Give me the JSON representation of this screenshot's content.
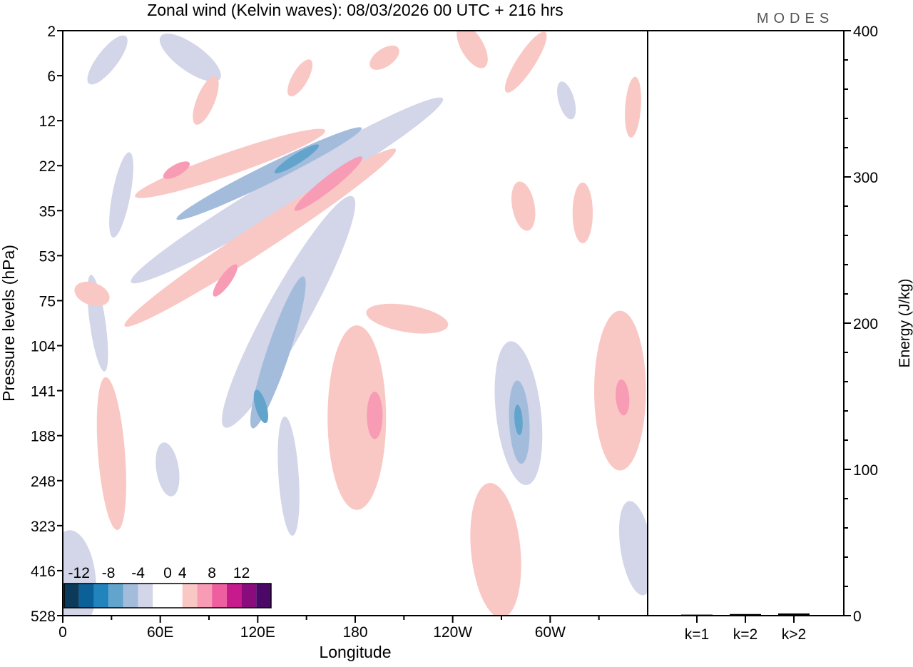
{
  "chart_data": {
    "type": "heatmap",
    "title": "Zonal wind (Kelvin waves):  08/03/2026  00 UTC  + 216 hrs",
    "logo": "MODES",
    "xlabel": "Longitude",
    "ylabel": "Pressure levels (hPa)",
    "x_ticks": [
      {
        "lon": 0,
        "label": "0"
      },
      {
        "lon": 60,
        "label": "60E"
      },
      {
        "lon": 120,
        "label": "120E"
      },
      {
        "lon": 180,
        "label": "180"
      },
      {
        "lon": 240,
        "label": "120W"
      },
      {
        "lon": 300,
        "label": "60W"
      }
    ],
    "xlim": [
      0,
      360
    ],
    "y_levels": [
      "2",
      "6",
      "12",
      "22",
      "35",
      "53",
      "75",
      "104",
      "141",
      "188",
      "248",
      "323",
      "416",
      "528"
    ],
    "colorbar": {
      "labels": [
        "-12",
        "-8",
        "-4",
        "0",
        "4",
        "8",
        "12"
      ],
      "label_values": [
        -12,
        -8,
        -4,
        0,
        4,
        8,
        12
      ],
      "bounds": [
        -14,
        -12,
        -10,
        -8,
        -6,
        -4,
        -2,
        2,
        4,
        6,
        8,
        10,
        12,
        14
      ],
      "colors": [
        "#0b3a5a",
        "#0b6097",
        "#2184bd",
        "#63a4cd",
        "#a4bcdc",
        "#d3d5e8",
        "#ffffff",
        "#f9c8c4",
        "#f89bb4",
        "#ef5e9e",
        "#c61a8d",
        "#8a0c7c",
        "#4b0868"
      ]
    },
    "features": [
      {
        "from": [
          5,
          11.6
        ],
        "to": [
          8,
          12.8
        ],
        "width": 1.0,
        "value": -3
      },
      {
        "from": [
          350,
          10.8
        ],
        "to": [
          356,
          12.2
        ],
        "width": 0.7,
        "value": -3
      },
      {
        "from": [
          51,
          5.4
        ],
        "to": [
          225,
          1.7
        ],
        "width": 0.75,
        "value": -3
      },
      {
        "from": [
          106,
          8.4
        ],
        "to": [
          172,
          4.1
        ],
        "width": 0.95,
        "value": -3
      },
      {
        "from": [
          137,
          8.8
        ],
        "to": [
          141,
          11.0
        ],
        "width": 0.45,
        "value": -3
      },
      {
        "from": [
          277,
          7.4
        ],
        "to": [
          284,
          9.6
        ],
        "width": 1.0,
        "value": -3
      },
      {
        "from": [
          67,
          0.3
        ],
        "to": [
          90,
          0.9
        ],
        "width": 0.6,
        "value": -3
      },
      {
        "from": [
          20,
          1.0
        ],
        "to": [
          35,
          0.3
        ],
        "width": 0.45,
        "value": -3
      },
      {
        "from": [
          308,
          1.3
        ],
        "to": [
          312,
          1.8
        ],
        "width": 0.35,
        "value": -3
      },
      {
        "from": [
          40,
          2.9
        ],
        "to": [
          32,
          4.4
        ],
        "width": 0.4,
        "value": -3
      },
      {
        "from": [
          63,
          9.4
        ],
        "to": [
          66,
          10.1
        ],
        "width": 0.5,
        "value": -3
      },
      {
        "from": [
          18,
          5.6
        ],
        "to": [
          25,
          7.4
        ],
        "width": 0.35,
        "value": -3
      },
      {
        "from": [
          75,
          4.1
        ],
        "to": [
          179,
          2.25
        ],
        "width": 0.4,
        "value": -5
      },
      {
        "from": [
          119,
          8.6
        ],
        "to": [
          146,
          5.7
        ],
        "width": 0.5,
        "value": -5
      },
      {
        "from": [
          280,
          8.0
        ],
        "to": [
          282,
          9.4
        ],
        "width": 0.45,
        "value": -5
      },
      {
        "from": [
          133,
          3.1
        ],
        "to": [
          155,
          2.6
        ],
        "width": 0.22,
        "value": -7
      },
      {
        "from": [
          120,
          8.1
        ],
        "to": [
          124,
          8.6
        ],
        "width": 0.25,
        "value": -7
      },
      {
        "from": [
          280,
          8.4
        ],
        "to": [
          281,
          8.9
        ],
        "width": 0.18,
        "value": -7
      },
      {
        "from": [
          51,
          3.6
        ],
        "to": [
          155,
          2.3
        ],
        "width": 0.5,
        "value": 3
      },
      {
        "from": [
          45,
          6.4
        ],
        "to": [
          198,
          2.8
        ],
        "width": 0.6,
        "value": 3
      },
      {
        "from": [
          181,
          7.2
        ],
        "to": [
          181,
          10.0
        ],
        "width": 1.3,
        "value": 3
      },
      {
        "from": [
          195,
          6.3
        ],
        "to": [
          229,
          6.5
        ],
        "width": 0.6,
        "value": 3
      },
      {
        "from": [
          343,
          6.8
        ],
        "to": [
          343,
          9.2
        ],
        "width": 1.15,
        "value": 3
      },
      {
        "from": [
          264,
          10.6
        ],
        "to": [
          269,
          12.5
        ],
        "width": 1.1,
        "value": 3
      },
      {
        "from": [
          14,
          5.8
        ],
        "to": [
          22,
          5.9
        ],
        "width": 0.5,
        "value": 3
      },
      {
        "from": [
          27,
          8.0
        ],
        "to": [
          33,
          10.8
        ],
        "width": 0.6,
        "value": 3
      },
      {
        "from": [
          294,
          0.2
        ],
        "to": [
          276,
          1.2
        ],
        "width": 0.4,
        "value": 3
      },
      {
        "from": [
          248,
          0.1
        ],
        "to": [
          256,
          0.6
        ],
        "width": 0.5,
        "value": 3
      },
      {
        "from": [
          84,
          1.9
        ],
        "to": [
          92,
          1.2
        ],
        "width": 0.4,
        "value": 3
      },
      {
        "from": [
          142,
          1.3
        ],
        "to": [
          150,
          0.8
        ],
        "width": 0.35,
        "value": 3
      },
      {
        "from": [
          194,
          0.7
        ],
        "to": [
          202,
          0.5
        ],
        "width": 0.4,
        "value": 3
      },
      {
        "from": [
          282,
          3.6
        ],
        "to": [
          285,
          4.2
        ],
        "width": 0.5,
        "value": 3
      },
      {
        "from": [
          320,
          3.6
        ],
        "to": [
          320,
          4.5
        ],
        "width": 0.45,
        "value": 3
      },
      {
        "from": [
          352,
          1.2
        ],
        "to": [
          350,
          2.2
        ],
        "width": 0.35,
        "value": 3
      },
      {
        "from": [
          146,
          3.9
        ],
        "to": [
          181,
          2.9
        ],
        "width": 0.3,
        "value": 5
      },
      {
        "from": [
          65,
          3.2
        ],
        "to": [
          75,
          3.0
        ],
        "width": 0.25,
        "value": 5
      },
      {
        "from": [
          95,
          5.8
        ],
        "to": [
          105,
          5.3
        ],
        "width": 0.25,
        "value": 5
      },
      {
        "from": [
          192,
          8.2
        ],
        "to": [
          192,
          8.9
        ],
        "width": 0.35,
        "value": 5
      },
      {
        "from": [
          344,
          7.9
        ],
        "to": [
          345,
          8.4
        ],
        "width": 0.3,
        "value": 5
      }
    ],
    "energy_panel": {
      "ylabel": "Energy (J/kg)",
      "ylim": [
        0,
        400
      ],
      "y_ticks": [
        "0",
        "100",
        "200",
        "300",
        "400"
      ],
      "y_tick_values": [
        0,
        100,
        200,
        300,
        400
      ],
      "categories": [
        "k=1",
        "k=2",
        "k>2"
      ],
      "values": [
        0.2,
        0.6,
        1.0
      ]
    }
  }
}
